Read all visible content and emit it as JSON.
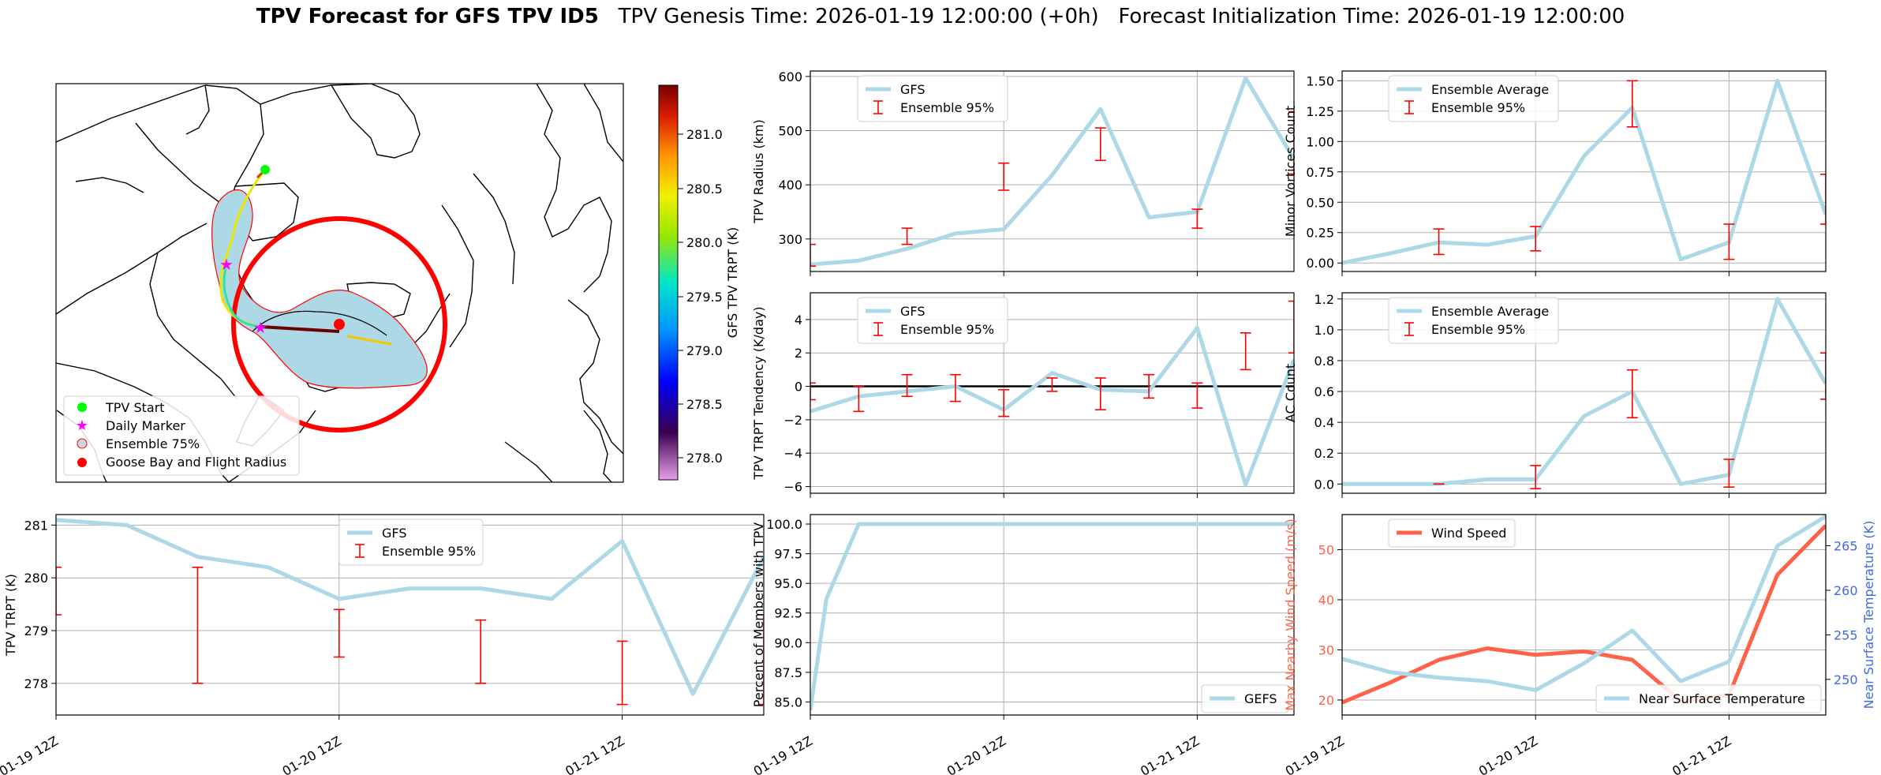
{
  "figure": {
    "title_bold": "TPV Forecast for GFS TPV ID5",
    "title_rest": "TPV Genesis Time: 2026-01-19 12:00:00 (+0h)   Forecast Initialization Time: 2026-01-19 12:00:00"
  },
  "colors": {
    "gfs": "#add8e6",
    "ensemble": "#ff0000",
    "wind": "#ff6347",
    "temp_axis": "#4169e1",
    "zero_line": "#000000"
  },
  "map": {
    "colorbar_label": "GFS TPV TRPT (K)",
    "colorbar_ticks": [
      "281.0",
      "280.5",
      "280.0",
      "279.5",
      "279.0",
      "278.5",
      "278.0"
    ],
    "legend": [
      "TPV Start",
      "Daily Marker",
      "Ensemble 75%",
      "Goose Bay and Flight Radius"
    ]
  },
  "chart_data": [
    {
      "id": "radius",
      "type": "line",
      "ylabel": "TPV Radius (km)",
      "x": [
        0,
        3,
        6,
        9,
        12,
        15,
        18,
        21,
        24,
        27,
        30
      ],
      "xlim": [
        0,
        30
      ],
      "ylim": [
        240,
        610
      ],
      "yticks": [
        "300",
        "400",
        "500",
        "600"
      ],
      "ytick_values": [
        300,
        400,
        500,
        600
      ],
      "series": [
        {
          "name": "GFS",
          "values": [
            253,
            260,
            282,
            310,
            318,
            418,
            540,
            340,
            350,
            597,
            447
          ]
        }
      ],
      "errorbars": {
        "name": "Ensemble 95%",
        "x": [
          0,
          6,
          12,
          18,
          24,
          30
        ],
        "low": [
          250,
          290,
          390,
          445,
          320,
          420
        ],
        "high": [
          290,
          320,
          440,
          505,
          355,
          535
        ]
      },
      "legend": [
        "GFS",
        "Ensemble 95%"
      ],
      "xtick_labels": []
    },
    {
      "id": "minor",
      "type": "line",
      "ylabel": "Minor Vortices Count",
      "x": [
        0,
        3,
        6,
        9,
        12,
        15,
        18,
        21,
        24,
        27,
        30
      ],
      "xlim": [
        0,
        30
      ],
      "ylim": [
        -0.07,
        1.58
      ],
      "yticks": [
        "0.00",
        "0.25",
        "0.50",
        "0.75",
        "1.00",
        "1.25",
        "1.50"
      ],
      "ytick_values": [
        0,
        0.25,
        0.5,
        0.75,
        1.0,
        1.25,
        1.5
      ],
      "series": [
        {
          "name": "Ensemble Average",
          "values": [
            0,
            0.08,
            0.17,
            0.15,
            0.22,
            0.88,
            1.28,
            0.03,
            0.17,
            1.5,
            0.4
          ]
        }
      ],
      "errorbars": {
        "name": "Ensemble 95%",
        "x": [
          6,
          12,
          18,
          24,
          30
        ],
        "low": [
          0.07,
          0.1,
          1.12,
          0.03,
          0.32
        ],
        "high": [
          0.28,
          0.3,
          1.5,
          0.32,
          0.73
        ]
      },
      "legend": [
        "Ensemble Average",
        "Ensemble 95%"
      ],
      "xtick_labels": []
    },
    {
      "id": "tendency",
      "type": "line",
      "ylabel": "TPV TRPT Tendency (K/day)",
      "x": [
        0,
        3,
        6,
        9,
        12,
        15,
        18,
        21,
        24,
        27,
        30
      ],
      "xlim": [
        0,
        30
      ],
      "ylim": [
        -6.4,
        5.6
      ],
      "yticks": [
        "−6",
        "−4",
        "−2",
        "0",
        "2",
        "4"
      ],
      "ytick_values": [
        -6,
        -4,
        -2,
        0,
        2,
        4
      ],
      "zero_line": 0,
      "series": [
        {
          "name": "GFS",
          "values": [
            -1.5,
            -0.6,
            -0.3,
            0,
            -1.4,
            0.8,
            -0.2,
            -0.3,
            3.5,
            -5.9,
            1.6
          ]
        }
      ],
      "errorbars": {
        "name": "Ensemble 95%",
        "x": [
          0,
          3,
          6,
          9,
          12,
          15,
          18,
          21,
          24,
          27,
          30
        ],
        "low": [
          -0.8,
          -1.5,
          -0.6,
          -0.9,
          -1.8,
          -0.3,
          -1.4,
          -0.7,
          -1.3,
          1.0,
          2.0
        ],
        "high": [
          0.2,
          0,
          0.7,
          0.7,
          -0.2,
          0.5,
          0.5,
          0.7,
          0.2,
          3.2,
          5.1
        ]
      },
      "legend": [
        "GFS",
        "Ensemble 95%"
      ],
      "xtick_labels": []
    },
    {
      "id": "ac",
      "type": "line",
      "ylabel": "AC Count",
      "x": [
        0,
        3,
        6,
        9,
        12,
        15,
        18,
        21,
        24,
        27,
        30
      ],
      "xlim": [
        0,
        30
      ],
      "ylim": [
        -0.06,
        1.24
      ],
      "yticks": [
        "0.0",
        "0.2",
        "0.4",
        "0.6",
        "0.8",
        "1.0",
        "1.2"
      ],
      "ytick_values": [
        0,
        0.2,
        0.4,
        0.6,
        0.8,
        1.0,
        1.2
      ],
      "series": [
        {
          "name": "Ensemble Average",
          "values": [
            0,
            0,
            0,
            0.03,
            0.03,
            0.44,
            0.6,
            0,
            0.06,
            1.2,
            0.65
          ]
        }
      ],
      "errorbars": {
        "name": "Ensemble 95%",
        "x": [
          6,
          12,
          18,
          24,
          30
        ],
        "low": [
          0,
          -0.03,
          0.43,
          -0.02,
          0.55
        ],
        "high": [
          0,
          0.12,
          0.74,
          0.16,
          0.85
        ]
      },
      "legend": [
        "Ensemble Average",
        "Ensemble 95%"
      ],
      "xtick_labels": []
    },
    {
      "id": "trpt",
      "type": "line",
      "ylabel": "TPV TRPT (K)",
      "x": [
        0,
        3,
        6,
        9,
        12,
        15,
        18,
        21,
        24,
        27,
        30
      ],
      "xlim": [
        0,
        30
      ],
      "ylim": [
        277.4,
        281.2
      ],
      "yticks": [
        "278",
        "279",
        "280",
        "281"
      ],
      "ytick_values": [
        278,
        279,
        280,
        281
      ],
      "series": [
        {
          "name": "GFS",
          "values": [
            281.1,
            281.0,
            280.4,
            280.2,
            279.6,
            279.8,
            279.8,
            279.6,
            280.7,
            277.8,
            280.4
          ]
        }
      ],
      "errorbars": {
        "name": "Ensemble 95%",
        "x": [
          0,
          6,
          12,
          18,
          24,
          30
        ],
        "low": [
          279.3,
          278.0,
          278.5,
          278.0,
          277.6,
          277.6
        ],
        "high": [
          280.2,
          280.2,
          279.4,
          279.2,
          278.8,
          279.3
        ]
      },
      "legend": [
        "GFS",
        "Ensemble 95%"
      ],
      "xtick_labels": [
        "01-19 12Z",
        "01-20 12Z",
        "01-21 12Z"
      ],
      "xtick_values": [
        0,
        12,
        24
      ]
    },
    {
      "id": "members",
      "type": "line",
      "ylabel": "Percent of Members with TPV",
      "x": [
        0,
        1,
        3,
        6,
        9,
        12,
        15,
        18,
        21,
        24,
        27,
        30
      ],
      "xlim": [
        0,
        30
      ],
      "ylim": [
        83.9,
        100.8
      ],
      "yticks": [
        "85.0",
        "87.5",
        "90.0",
        "92.5",
        "95.0",
        "97.5",
        "100.0"
      ],
      "ytick_values": [
        85,
        87.5,
        90,
        92.5,
        95,
        97.5,
        100
      ],
      "series": [
        {
          "name": "GEFS",
          "values": [
            84.3,
            93.7,
            100,
            100,
            100,
            100,
            100,
            100,
            100,
            100,
            100,
            100
          ]
        }
      ],
      "legend": [
        "GEFS"
      ],
      "xtick_labels": [
        "01-19 12Z",
        "01-20 12Z",
        "01-21 12Z"
      ],
      "xtick_values": [
        0,
        12,
        24
      ]
    },
    {
      "id": "wind_temp",
      "type": "line",
      "ylabel": "Max Nearby Wind Speed (m/s)",
      "ylabel_right": "Near Surface Temperature (K)",
      "x": [
        0,
        3,
        6,
        9,
        12,
        15,
        18,
        21,
        24,
        27,
        30
      ],
      "xlim": [
        0,
        30
      ],
      "ylim": [
        17,
        57
      ],
      "yticks": [
        "20",
        "30",
        "40",
        "50"
      ],
      "ytick_values": [
        20,
        30,
        40,
        50
      ],
      "ylim_right": [
        246,
        268.5
      ],
      "yticks_right": [
        "250",
        "255",
        "260",
        "265"
      ],
      "ytick_values_right": [
        250,
        255,
        260,
        265
      ],
      "series": [
        {
          "name": "Wind Speed",
          "axis": "left",
          "x": [
            0,
            3,
            6,
            9,
            12,
            15,
            18,
            21,
            24,
            27,
            30
          ],
          "values": [
            19.5,
            23.5,
            28,
            30.3,
            29,
            29.7,
            28,
            19.8,
            21,
            45,
            54.8
          ]
        },
        {
          "name": "Near Surface Temperature",
          "axis": "right",
          "x": [
            0,
            3,
            6,
            9,
            12,
            15,
            18,
            21,
            24,
            27,
            30
          ],
          "values": [
            252.3,
            250.8,
            250.2,
            249.8,
            248.8,
            251.8,
            255.5,
            249.8,
            252,
            265,
            268.3
          ]
        }
      ],
      "legend": [
        "Wind Speed",
        "Near Surface Temperature"
      ],
      "xtick_labels": [
        "01-19 12Z",
        "01-20 12Z",
        "01-21 12Z"
      ],
      "xtick_values": [
        0,
        12,
        24
      ]
    }
  ]
}
